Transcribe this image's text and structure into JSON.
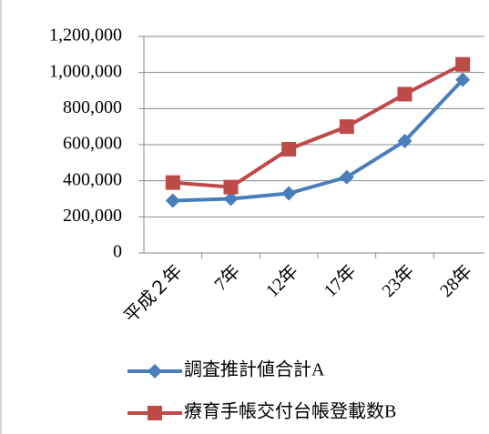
{
  "chart_data": {
    "type": "line",
    "categories": [
      "平成２年",
      "7年",
      "12年",
      "17年",
      "23年",
      "28年"
    ],
    "series": [
      {
        "name": "調査推計値合計A",
        "color": "#4a7ebb",
        "marker": "diamond",
        "values": [
          290000,
          300000,
          330000,
          420000,
          620000,
          960000
        ]
      },
      {
        "name": "療育手帳交付台帳登載数B",
        "color": "#be4b48",
        "marker": "square",
        "values": [
          390000,
          365000,
          575000,
          700000,
          880000,
          1045000
        ]
      }
    ],
    "ylim": [
      0,
      1200000
    ],
    "yticks": [
      0,
      {
        "value": 200000,
        "label": "200,000"
      },
      {
        "value": 400000,
        "label": "400,000"
      },
      {
        "value": 600000,
        "label": "600,000"
      },
      {
        "value": 800000,
        "label": "800,000"
      },
      {
        "value": 1000000,
        "label": "1,000,000"
      },
      {
        "value": 1200000,
        "label": "1,200,000"
      }
    ],
    "grid": true,
    "legend": "bottom"
  }
}
